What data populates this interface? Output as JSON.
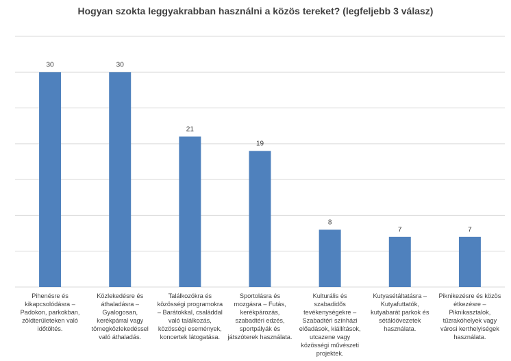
{
  "chart_data": {
    "type": "bar",
    "title": "Hogyan szokta leggyakrabban használni a közös tereket?  (legfeljebb 3 válasz)",
    "categories": [
      "Pihenésre és kikapcsolódásra – Padokon, parkokban, zöldterületeken való időtöltés.",
      "Közlekedésre és áthaladásra – Gyalogosan, kerékpárral vagy tömegközlekedéssel való áthaladás.",
      "Találkozókra és közösségi programokra – Barátokkal, családdal való találkozás, közösségi események, koncertek látogatása.",
      "Sportolásra és mozgásra – Futás, kerékpározás, szabadtéri edzés, sportpályák és játszóterek használata.",
      "Kulturális és szabadidős tevékenységekre – Szabadtéri színházi előadások, kiállítások, utcazene vagy közösségi művészeti projektek.",
      "Kutyasétáltatásra – Kutyafuttatók, kutyabarát parkok és sétálóövezetek használata.",
      "Piknikezésre és közös étkezésre – Piknikasztalok, tűzrakóhelyek vagy városi kerthelyiségek használata."
    ],
    "values": [
      30,
      30,
      21,
      19,
      8,
      7,
      7
    ],
    "ylim": [
      0,
      35
    ],
    "ytick_step": 5,
    "grid": true,
    "bar_color": "#4f81bd",
    "grid_color": "#d9d9d9",
    "xlabel": "",
    "ylabel": ""
  }
}
